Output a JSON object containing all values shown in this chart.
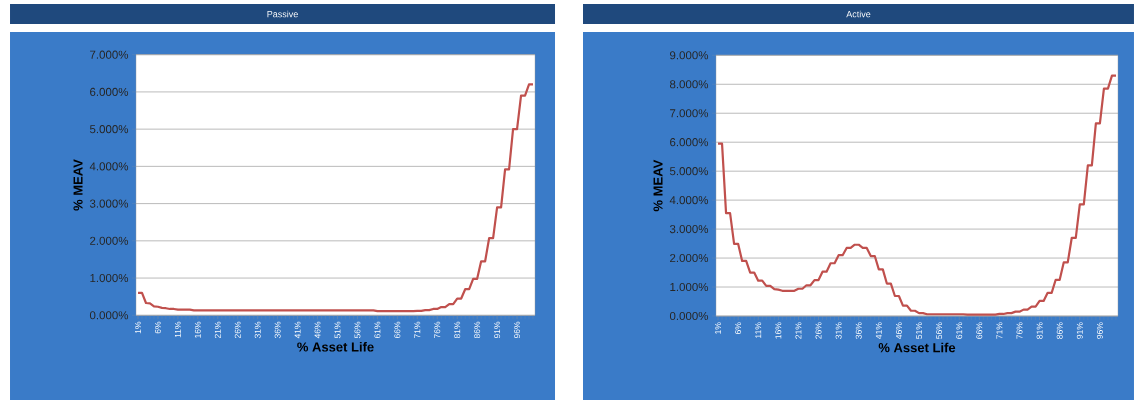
{
  "chart_data": [
    {
      "type": "line",
      "title": "Passive",
      "xlabel": "% Asset Life",
      "ylabel": "% MEAV",
      "color": "#c0504d",
      "grid": "y",
      "categories": [
        "1%",
        null,
        null,
        null,
        null,
        "6%",
        null,
        null,
        null,
        null,
        "11%",
        null,
        null,
        null,
        null,
        "16%",
        null,
        null,
        null,
        null,
        "21%",
        null,
        null,
        null,
        null,
        "26%",
        null,
        null,
        null,
        null,
        "31%",
        null,
        null,
        null,
        null,
        "36%",
        null,
        null,
        null,
        null,
        "41%",
        null,
        null,
        null,
        null,
        "46%",
        null,
        null,
        null,
        null,
        "51%",
        null,
        null,
        null,
        null,
        "56%",
        null,
        null,
        null,
        null,
        "61%",
        null,
        null,
        null,
        null,
        "66%",
        null,
        null,
        null,
        null,
        "71%",
        null,
        null,
        null,
        null,
        "76%",
        null,
        null,
        null,
        null,
        "81%",
        null,
        null,
        null,
        null,
        "86%",
        null,
        null,
        null,
        null,
        "91%",
        null,
        null,
        null,
        null,
        "96%",
        null,
        null,
        null,
        null
      ],
      "values": [
        0.6,
        0.6,
        0.33,
        0.32,
        0.24,
        0.23,
        0.2,
        0.19,
        0.17,
        0.17,
        0.15,
        0.15,
        0.15,
        0.15,
        0.13,
        0.13,
        0.13,
        0.13,
        0.13,
        0.13,
        0.13,
        0.13,
        0.13,
        0.13,
        0.13,
        0.13,
        0.13,
        0.13,
        0.13,
        0.13,
        0.13,
        0.13,
        0.13,
        0.13,
        0.13,
        0.13,
        0.13,
        0.13,
        0.13,
        0.13,
        0.13,
        0.13,
        0.13,
        0.13,
        0.13,
        0.13,
        0.13,
        0.13,
        0.13,
        0.13,
        0.13,
        0.13,
        0.13,
        0.13,
        0.13,
        0.13,
        0.13,
        0.13,
        0.13,
        0.13,
        0.11,
        0.11,
        0.11,
        0.11,
        0.11,
        0.11,
        0.11,
        0.11,
        0.11,
        0.11,
        0.12,
        0.12,
        0.14,
        0.14,
        0.17,
        0.17,
        0.22,
        0.22,
        0.3,
        0.3,
        0.45,
        0.45,
        0.7,
        0.7,
        0.98,
        0.98,
        1.45,
        1.45,
        2.07,
        2.07,
        2.9,
        2.9,
        3.92,
        3.92,
        5.0,
        5.0,
        5.9,
        5.9,
        6.2,
        6.2
      ],
      "ylim": [
        0,
        7
      ],
      "yticks": [
        {
          "value": 0,
          "label": "0.000%"
        },
        {
          "value": 1,
          "label": "1.000%"
        },
        {
          "value": 2,
          "label": "2.000%"
        },
        {
          "value": 3,
          "label": "3.000%"
        },
        {
          "value": 4,
          "label": "4.000%"
        },
        {
          "value": 5,
          "label": "5.000%"
        },
        {
          "value": 6,
          "label": "6.000%"
        },
        {
          "value": 7,
          "label": "7.000%"
        }
      ]
    },
    {
      "type": "line",
      "title": "Active",
      "xlabel": "% Asset Life",
      "ylabel": "% MEAV",
      "color": "#c0504d",
      "grid": "y",
      "categories": [
        "1%",
        null,
        null,
        null,
        null,
        "6%",
        null,
        null,
        null,
        null,
        "11%",
        null,
        null,
        null,
        null,
        "16%",
        null,
        null,
        null,
        null,
        "21%",
        null,
        null,
        null,
        null,
        "26%",
        null,
        null,
        null,
        null,
        "31%",
        null,
        null,
        null,
        null,
        "36%",
        null,
        null,
        null,
        null,
        "41%",
        null,
        null,
        null,
        null,
        "46%",
        null,
        null,
        null,
        null,
        "51%",
        null,
        null,
        null,
        null,
        "56%",
        null,
        null,
        null,
        null,
        "61%",
        null,
        null,
        null,
        null,
        "66%",
        null,
        null,
        null,
        null,
        "71%",
        null,
        null,
        null,
        null,
        "76%",
        null,
        null,
        null,
        null,
        "81%",
        null,
        null,
        null,
        null,
        "86%",
        null,
        null,
        null,
        null,
        "91%",
        null,
        null,
        null,
        null,
        "96%",
        null,
        null,
        null,
        null
      ],
      "values": [
        5.95,
        5.95,
        3.55,
        3.55,
        2.49,
        2.49,
        1.9,
        1.9,
        1.5,
        1.5,
        1.22,
        1.22,
        1.04,
        1.04,
        0.93,
        0.91,
        0.87,
        0.87,
        0.87,
        0.87,
        0.94,
        0.94,
        1.06,
        1.06,
        1.24,
        1.24,
        1.53,
        1.53,
        1.82,
        1.82,
        2.1,
        2.1,
        2.35,
        2.35,
        2.46,
        2.46,
        2.35,
        2.35,
        2.07,
        2.07,
        1.61,
        1.61,
        1.12,
        1.12,
        0.69,
        0.69,
        0.36,
        0.36,
        0.18,
        0.18,
        0.1,
        0.1,
        0.06,
        0.06,
        0.06,
        0.06,
        0.06,
        0.06,
        0.06,
        0.06,
        0.06,
        0.06,
        0.05,
        0.05,
        0.05,
        0.05,
        0.05,
        0.05,
        0.05,
        0.05,
        0.07,
        0.07,
        0.1,
        0.1,
        0.15,
        0.15,
        0.22,
        0.22,
        0.32,
        0.32,
        0.52,
        0.52,
        0.8,
        0.8,
        1.25,
        1.25,
        1.85,
        1.85,
        2.7,
        2.7,
        3.85,
        3.85,
        5.2,
        5.2,
        6.65,
        6.65,
        7.85,
        7.85,
        8.3,
        8.3
      ],
      "ylim": [
        0,
        9
      ],
      "yticks": [
        {
          "value": 0,
          "label": "0.000%"
        },
        {
          "value": 1,
          "label": "1.000%"
        },
        {
          "value": 2,
          "label": "2.000%"
        },
        {
          "value": 3,
          "label": "3.000%"
        },
        {
          "value": 4,
          "label": "4.000%"
        },
        {
          "value": 5,
          "label": "5.000%"
        },
        {
          "value": 6,
          "label": "6.000%"
        },
        {
          "value": 7,
          "label": "7.000%"
        },
        {
          "value": 8,
          "label": "8.000%"
        },
        {
          "value": 9,
          "label": "9.000%"
        }
      ]
    }
  ]
}
